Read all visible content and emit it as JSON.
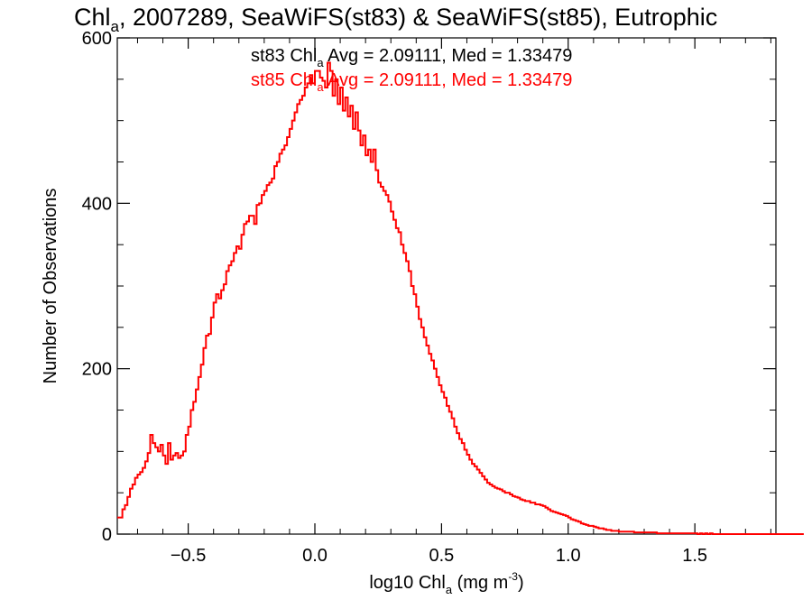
{
  "chart_data": {
    "type": "histogram",
    "title": {
      "prefix": "Chl",
      "sub": "a",
      "suffix": ", 2007289, SeaWiFS(st83) & SeaWiFS(st85), Eutrophic"
    },
    "xlabel": {
      "prefix": "log10 Chl",
      "sub": "a",
      "mid": " (mg m",
      "sup": "-3",
      "suffix": ")"
    },
    "ylabel": "Number of Observations",
    "xlim": [
      -0.78,
      1.82
    ],
    "ylim": [
      0,
      600
    ],
    "x_ticks": [
      -0.5,
      0.0,
      0.5,
      1.0,
      1.5
    ],
    "x_tick_labels": [
      "−0.5",
      "0.0",
      "0.5",
      "1.0",
      "1.5"
    ],
    "y_ticks": [
      0,
      200,
      400,
      600
    ],
    "y_tick_labels": [
      "0",
      "200",
      "400",
      "600"
    ],
    "annotations": [
      {
        "series": "st83",
        "prefix": "st83 Chl",
        "sub": "a",
        "suffix": " Avg = 2.09111, Med = 1.33479",
        "color": "#000000"
      },
      {
        "series": "st85",
        "prefix": "st85 Chl",
        "sub": "a",
        "suffix": " Avg = 2.09111, Med = 1.33479",
        "color": "#ff0000"
      }
    ],
    "series": [
      {
        "name": "st85",
        "color": "#ff0000",
        "bin_width": 0.01,
        "x_start": -0.78,
        "values": [
          20,
          20,
          30,
          35,
          45,
          55,
          60,
          68,
          72,
          75,
          80,
          88,
          98,
          120,
          110,
          105,
          100,
          108,
          95,
          85,
          110,
          90,
          95,
          98,
          92,
          95,
          100,
          120,
          130,
          150,
          160,
          175,
          190,
          205,
          225,
          240,
          242,
          262,
          280,
          290,
          285,
          295,
          302,
          318,
          325,
          330,
          340,
          348,
          345,
          362,
          375,
          378,
          385,
          385,
          375,
          398,
          400,
          410,
          415,
          422,
          425,
          430,
          445,
          450,
          460,
          465,
          470,
          480,
          490,
          500,
          510,
          520,
          525,
          530,
          540,
          545,
          555,
          545,
          560,
          560,
          552,
          548,
          540,
          570,
          560,
          530,
          550,
          520,
          540,
          512,
          528,
          505,
          518,
          490,
          510,
          488,
          470,
          482,
          458,
          465,
          450,
          465,
          440,
          425,
          420,
          415,
          410,
          402,
          390,
          380,
          370,
          365,
          350,
          340,
          330,
          318,
          300,
          290,
          275,
          260,
          250,
          238,
          228,
          218,
          210,
          200,
          190,
          180,
          172,
          165,
          155,
          148,
          140,
          130,
          122,
          115,
          110,
          102,
          96,
          90,
          85,
          82,
          78,
          74,
          70,
          66,
          62,
          60,
          58,
          56,
          55,
          54,
          52,
          50,
          50,
          48,
          46,
          45,
          44,
          42,
          41,
          40,
          40,
          38,
          38,
          36,
          36,
          35,
          34,
          32,
          30,
          28,
          27,
          26,
          25,
          24,
          23,
          22,
          20,
          18,
          17,
          16,
          15,
          13,
          12,
          11,
          10,
          10,
          9,
          8,
          7,
          7,
          6,
          5,
          5,
          4,
          4,
          4,
          3,
          3,
          3,
          3,
          3,
          3,
          2,
          2,
          2,
          2,
          2,
          2,
          2,
          2,
          2,
          1,
          1,
          1,
          1,
          1,
          1,
          1,
          1,
          1,
          1,
          1,
          1,
          1,
          1,
          1,
          1,
          0,
          1,
          0,
          1,
          0,
          1,
          0,
          0,
          0,
          0,
          0,
          0,
          0,
          0,
          0,
          0,
          0,
          0,
          0,
          0,
          0,
          0,
          0,
          0,
          0,
          0,
          0,
          0,
          0,
          0,
          0,
          0,
          0,
          0,
          0,
          0,
          0,
          0,
          0,
          0,
          0,
          0,
          0
        ]
      }
    ]
  }
}
